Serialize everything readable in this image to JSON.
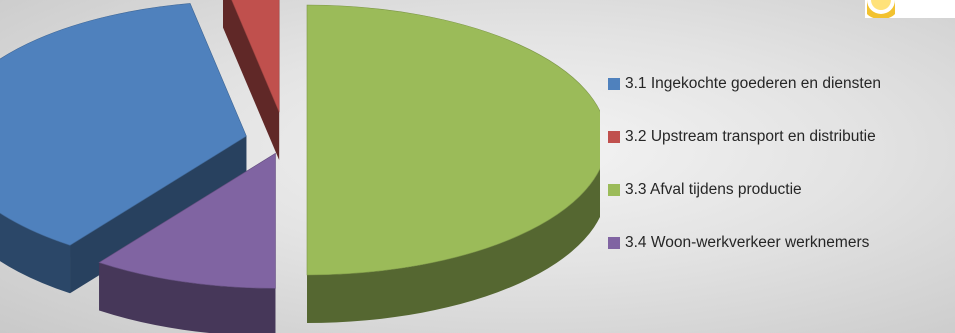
{
  "chart_data": {
    "type": "pie",
    "style": "3d-exploded",
    "title": "",
    "categories": [
      "3.1 Ingekochte goederen en diensten",
      "3.2 Upstream transport en distributie",
      "3.3 Afval tijdens productie",
      "3.4 Woon-werkverkeer werknemers"
    ],
    "values": [
      37,
      3,
      50,
      10
    ],
    "colors": [
      "#4f81bd",
      "#c0504d",
      "#9bbb59",
      "#8064a2"
    ],
    "legend": "right",
    "data_labels": false
  },
  "logo": {
    "icon": "coin-icon"
  }
}
